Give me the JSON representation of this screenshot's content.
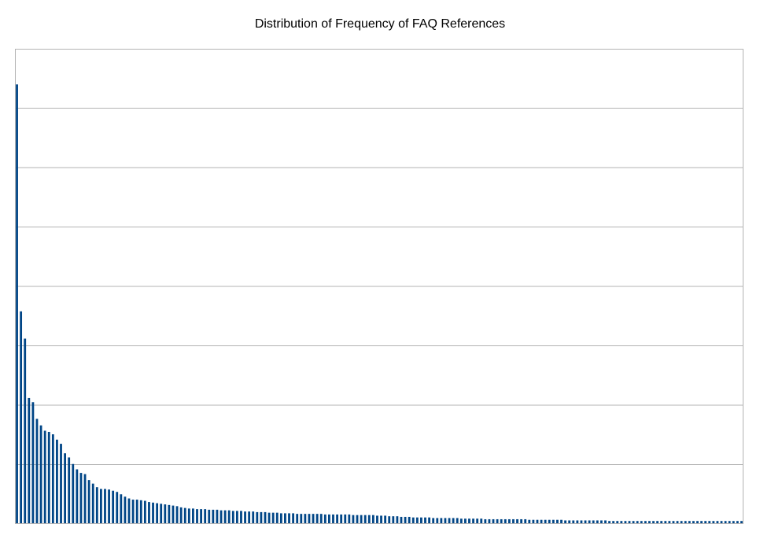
{
  "chart_data": {
    "type": "bar",
    "title": "Distribution of Frequency of FAQ References",
    "xlabel": "",
    "ylabel": "",
    "ylim": [
      0,
      8
    ],
    "grid": true,
    "legend": "none",
    "bar_color": "#004586",
    "grid_color": "#b3b3b3",
    "values": [
      7.4,
      3.58,
      3.12,
      2.12,
      2.05,
      1.77,
      1.66,
      1.57,
      1.55,
      1.51,
      1.42,
      1.35,
      1.19,
      1.12,
      1.01,
      0.92,
      0.86,
      0.84,
      0.74,
      0.68,
      0.62,
      0.59,
      0.59,
      0.58,
      0.56,
      0.54,
      0.5,
      0.46,
      0.43,
      0.41,
      0.41,
      0.4,
      0.39,
      0.37,
      0.36,
      0.35,
      0.34,
      0.33,
      0.32,
      0.31,
      0.3,
      0.28,
      0.27,
      0.26,
      0.26,
      0.25,
      0.25,
      0.25,
      0.24,
      0.24,
      0.24,
      0.23,
      0.23,
      0.23,
      0.22,
      0.22,
      0.22,
      0.21,
      0.21,
      0.21,
      0.2,
      0.2,
      0.2,
      0.19,
      0.19,
      0.19,
      0.18,
      0.18,
      0.18,
      0.18,
      0.17,
      0.17,
      0.17,
      0.17,
      0.17,
      0.17,
      0.17,
      0.16,
      0.16,
      0.16,
      0.16,
      0.16,
      0.16,
      0.16,
      0.15,
      0.15,
      0.15,
      0.15,
      0.15,
      0.15,
      0.14,
      0.14,
      0.14,
      0.13,
      0.13,
      0.13,
      0.12,
      0.12,
      0.12,
      0.11,
      0.11,
      0.11,
      0.11,
      0.11,
      0.1,
      0.1,
      0.1,
      0.1,
      0.1,
      0.1,
      0.1,
      0.09,
      0.09,
      0.09,
      0.09,
      0.09,
      0.09,
      0.08,
      0.08,
      0.08,
      0.08,
      0.08,
      0.08,
      0.08,
      0.08,
      0.08,
      0.08,
      0.08,
      0.07,
      0.07,
      0.07,
      0.07,
      0.07,
      0.07,
      0.07,
      0.07,
      0.07,
      0.06,
      0.06,
      0.06,
      0.06,
      0.06,
      0.06,
      0.06,
      0.06,
      0.06,
      0.06,
      0.06,
      0.05,
      0.05,
      0.05,
      0.05,
      0.05,
      0.05,
      0.05,
      0.05,
      0.05,
      0.05,
      0.05,
      0.05,
      0.05,
      0.05,
      0.05,
      0.05,
      0.05,
      0.05,
      0.05,
      0.05,
      0.05,
      0.05,
      0.05,
      0.05,
      0.05,
      0.05,
      0.05,
      0.05,
      0.05,
      0.05,
      0.05,
      0.05,
      0.05,
      0.05
    ]
  }
}
